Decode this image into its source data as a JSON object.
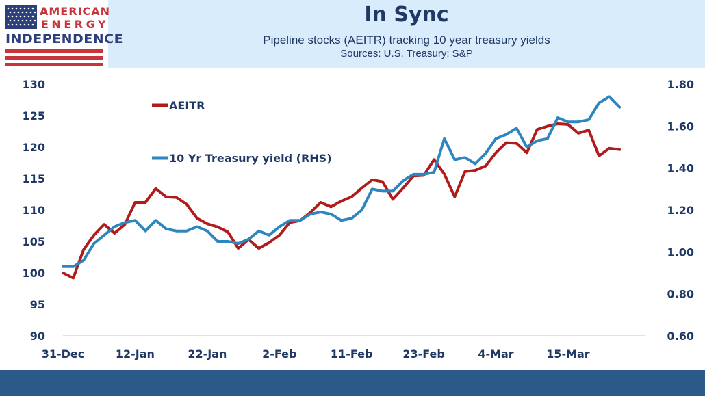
{
  "header": {
    "logo": {
      "line1": "AMERICAN",
      "line2": "ENERGY",
      "line3": "INDEPENDENCE"
    },
    "title": "In Sync",
    "subtitle": "Pipeline stocks (AEITR) tracking 10 year treasury yields",
    "sources": "Sources: U.S. Treasury; S&P"
  },
  "colors": {
    "aeitr": "#b01c1c",
    "treasury": "#2e86c1",
    "header_bg": "#d8ecfb",
    "footer_bg": "#2b5a8a",
    "text": "#1f3864"
  },
  "chart_data": {
    "type": "line",
    "x_tick_labels": [
      "31-Dec",
      "12-Jan",
      "22-Jan",
      "2-Feb",
      "11-Feb",
      "23-Feb",
      "4-Mar",
      "15-Mar"
    ],
    "x_tick_indices": [
      0,
      7,
      14,
      21,
      28,
      35,
      42,
      49
    ],
    "y_left": {
      "min": 90,
      "max": 130,
      "ticks": [
        90,
        95,
        100,
        105,
        110,
        115,
        120,
        125,
        130
      ]
    },
    "y_right": {
      "min": 0.6,
      "max": 1.8,
      "ticks": [
        "0.60",
        "0.80",
        "1.00",
        "1.20",
        "1.40",
        "1.60",
        "1.80"
      ]
    },
    "legend_placement": "inside upper-left",
    "series": [
      {
        "name": "AEITR",
        "axis": "left",
        "values": [
          100.0,
          99.2,
          103.7,
          106.0,
          107.7,
          106.3,
          107.7,
          111.2,
          111.2,
          113.4,
          112.1,
          112.0,
          110.9,
          108.7,
          107.8,
          107.3,
          106.5,
          103.9,
          105.3,
          103.9,
          104.8,
          106.0,
          108.0,
          108.3,
          109.6,
          111.2,
          110.5,
          111.4,
          112.1,
          113.5,
          114.8,
          114.5,
          111.7,
          113.5,
          115.4,
          115.5,
          118.0,
          115.7,
          112.1,
          116.1,
          116.3,
          117.0,
          119.1,
          120.7,
          120.6,
          119.1,
          122.8,
          123.3,
          123.7,
          123.6,
          122.2,
          122.7,
          118.6,
          119.8,
          119.6
        ]
      },
      {
        "name": "10 Yr Treasury yield (RHS)",
        "axis": "right",
        "values": [
          0.93,
          0.93,
          0.96,
          1.04,
          1.08,
          1.12,
          1.14,
          1.15,
          1.1,
          1.15,
          1.11,
          1.1,
          1.1,
          1.12,
          1.1,
          1.05,
          1.05,
          1.04,
          1.06,
          1.1,
          1.08,
          1.12,
          1.15,
          1.15,
          1.18,
          1.19,
          1.18,
          1.15,
          1.16,
          1.2,
          1.3,
          1.29,
          1.29,
          1.34,
          1.37,
          1.37,
          1.38,
          1.54,
          1.44,
          1.45,
          1.42,
          1.47,
          1.54,
          1.56,
          1.59,
          1.5,
          1.53,
          1.54,
          1.64,
          1.62,
          1.62,
          1.63,
          1.71,
          1.74,
          1.69
        ]
      }
    ]
  }
}
